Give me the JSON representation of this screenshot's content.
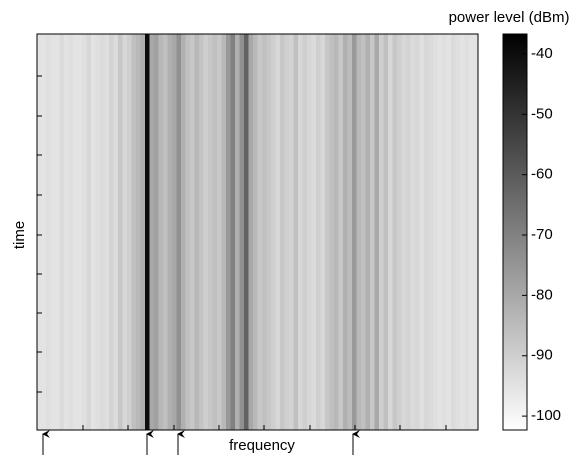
{
  "chart_data": {
    "type": "heatmap",
    "colorbar_label": "power level (dBm)",
    "xlabel": "frequency",
    "ylabel": "time",
    "values": [
      -95,
      -95,
      -94,
      -95,
      -95,
      -93,
      -95,
      -94,
      -95,
      -95,
      -94,
      -92,
      -95,
      -94,
      -93,
      -94,
      -91,
      -93,
      -88,
      -92,
      -90,
      -86,
      -84,
      -82,
      -40,
      -80,
      -78,
      -84,
      -86,
      -82,
      -80,
      -74,
      -82,
      -86,
      -88,
      -84,
      -87,
      -90,
      -88,
      -86,
      -88,
      -84,
      -76,
      -70,
      -82,
      -74,
      -62,
      -80,
      -84,
      -88,
      -86,
      -88,
      -90,
      -92,
      -88,
      -90,
      -91,
      -86,
      -92,
      -90,
      -92,
      -93,
      -90,
      -92,
      -88,
      -86,
      -84,
      -88,
      -82,
      -85,
      -76,
      -84,
      -86,
      -82,
      -88,
      -80,
      -90,
      -86,
      -92,
      -88,
      -90,
      -92,
      -91,
      -93,
      -92,
      -94,
      -92,
      -93,
      -94,
      -95,
      -94,
      -95,
      -93,
      -94,
      -95,
      -94,
      -95,
      -95
    ],
    "clim": [
      -102.3,
      -36.7
    ],
    "cticks": [
      -40,
      -50,
      -60,
      -70,
      -80,
      -90,
      -100
    ],
    "colormap": "gray_r"
  }
}
